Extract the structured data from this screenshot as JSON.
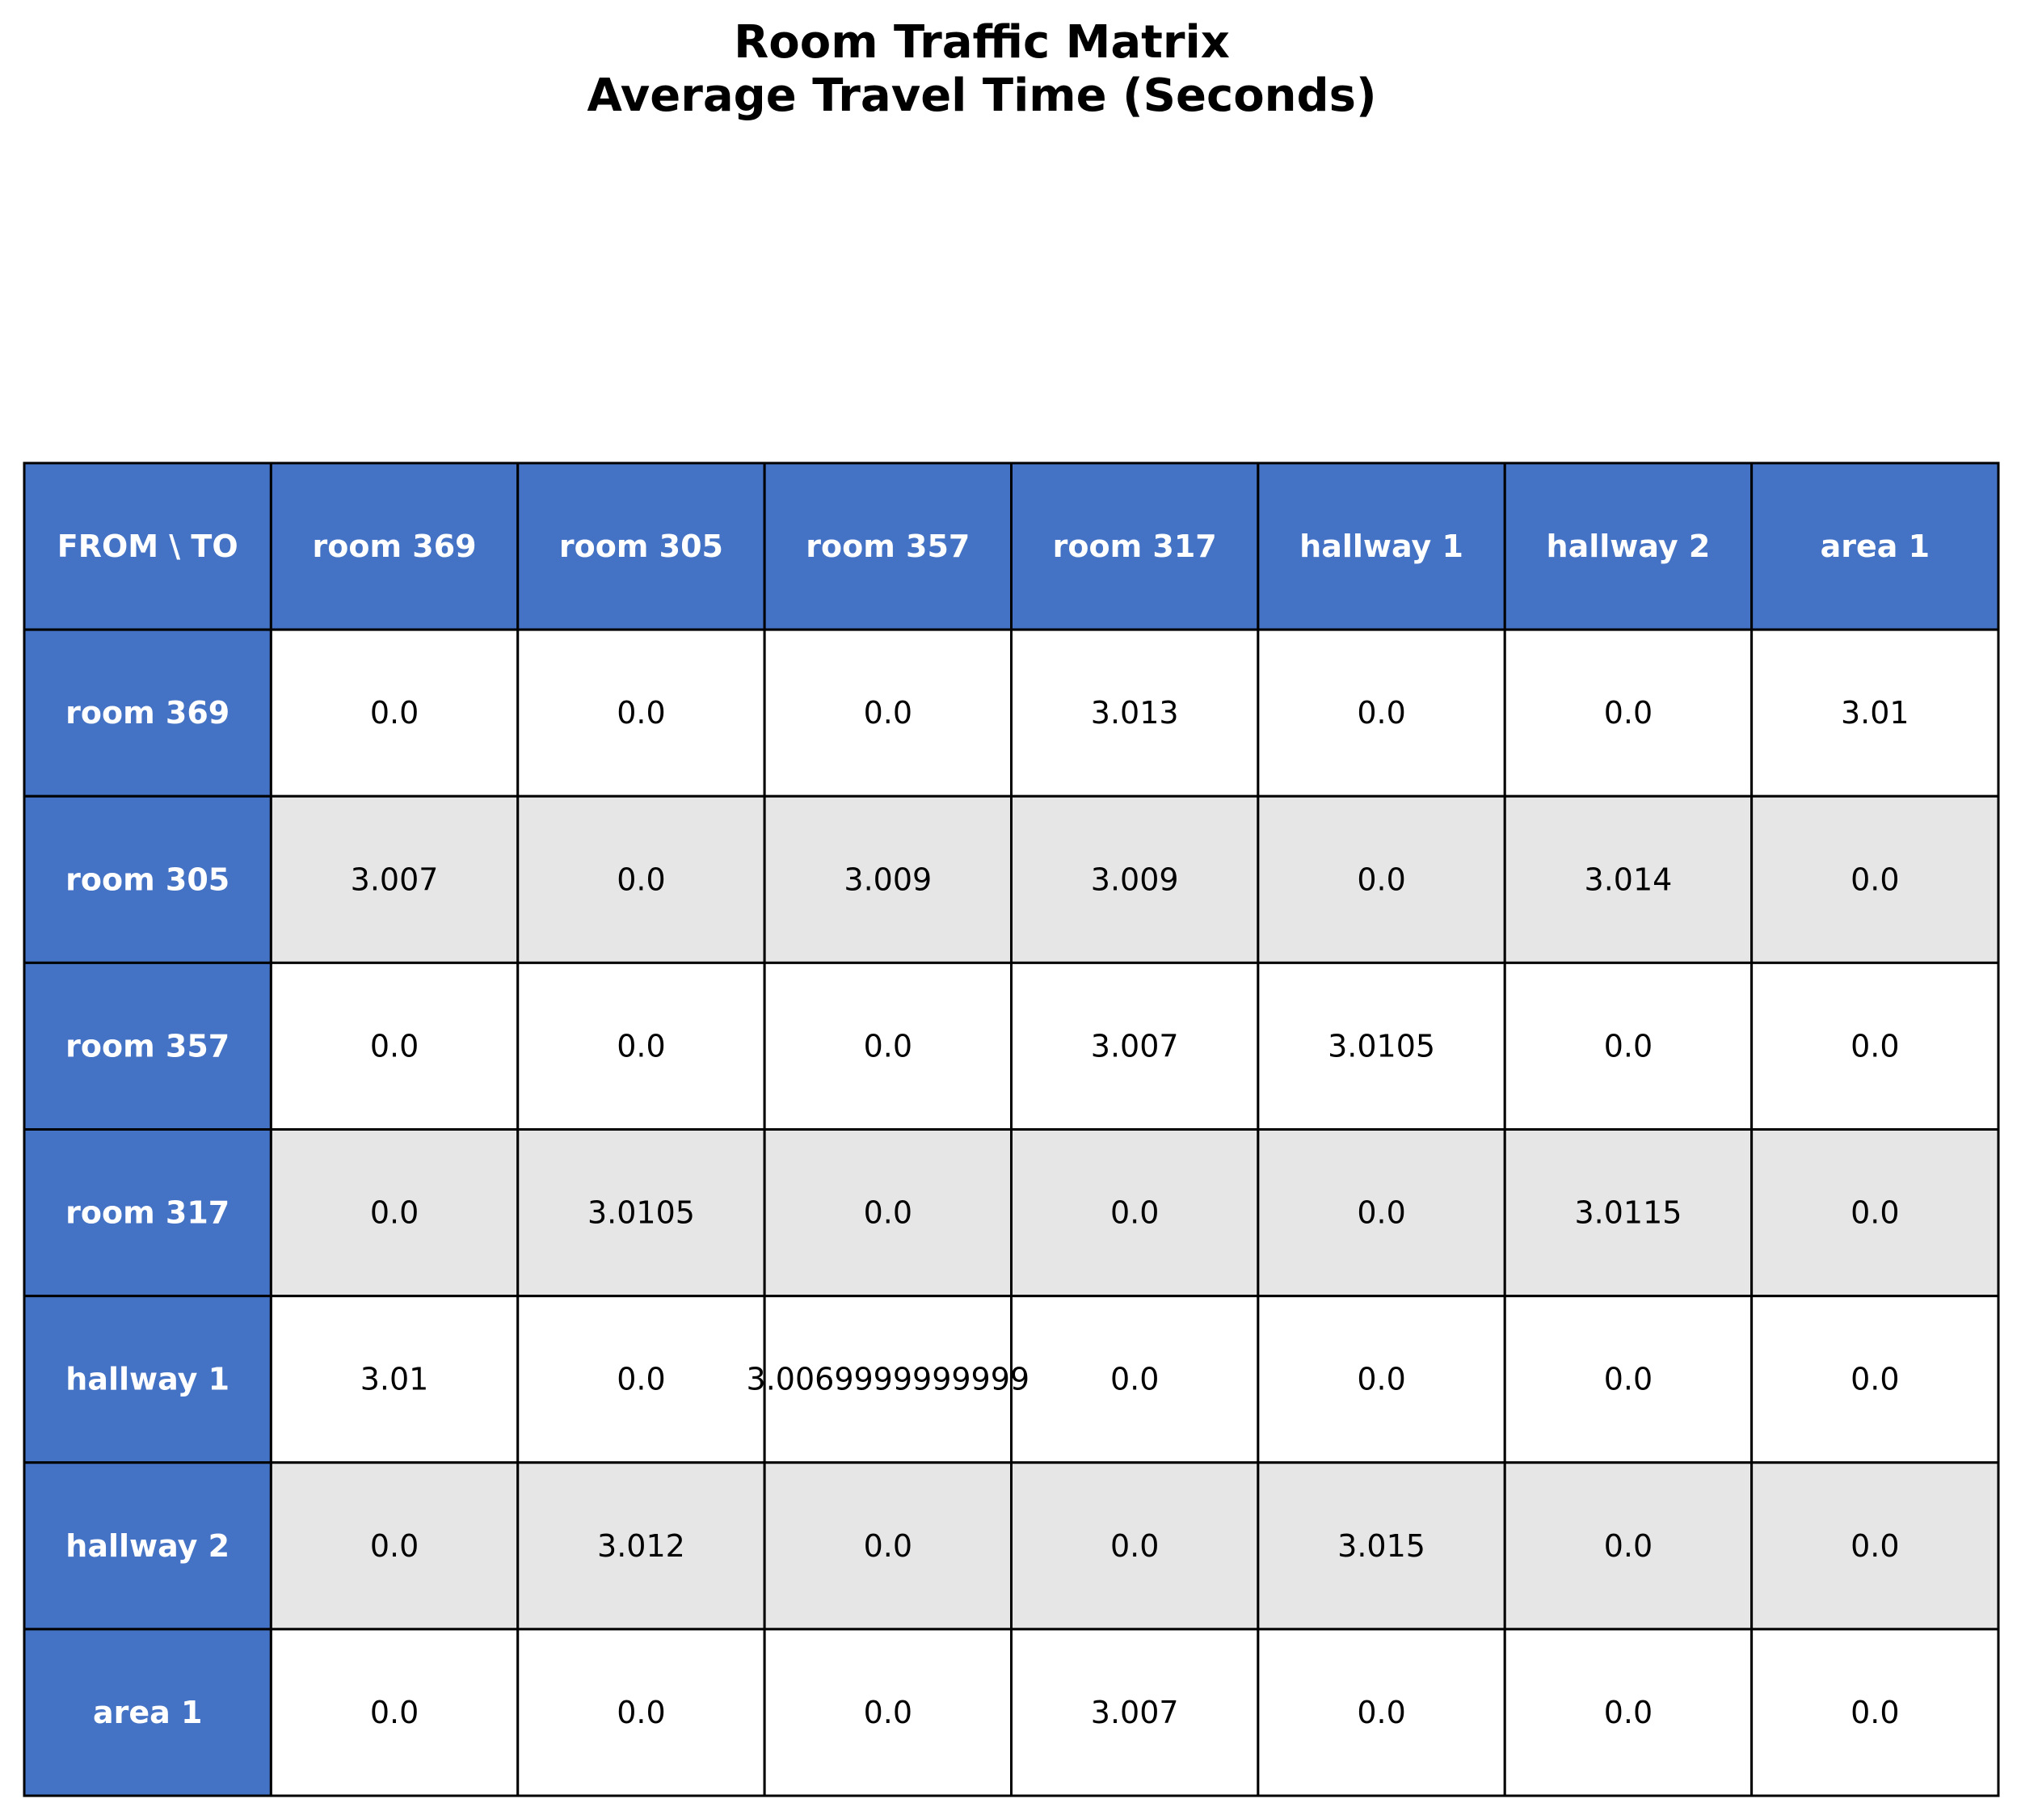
{
  "chart_data": {
    "type": "table",
    "title_lines": [
      "Room Traffic Matrix",
      "Average Travel Time (Seconds)"
    ],
    "corner_label": "FROM \\ TO",
    "columns": [
      "room 369",
      "room 305",
      "room 357",
      "room 317",
      "hallway 1",
      "hallway 2",
      "area 1"
    ],
    "rows": [
      {
        "label": "room 369",
        "values": [
          "0.0",
          "0.0",
          "0.0",
          "3.013",
          "0.0",
          "0.0",
          "3.01"
        ]
      },
      {
        "label": "room 305",
        "values": [
          "3.007",
          "0.0",
          "3.009",
          "3.009",
          "0.0",
          "3.014",
          "0.0"
        ]
      },
      {
        "label": "room 357",
        "values": [
          "0.0",
          "0.0",
          "0.0",
          "3.007",
          "3.0105",
          "0.0",
          "0.0"
        ]
      },
      {
        "label": "room 317",
        "values": [
          "0.0",
          "3.0105",
          "0.0",
          "0.0",
          "0.0",
          "3.0115",
          "0.0"
        ]
      },
      {
        "label": "hallway 1",
        "values": [
          "3.01",
          "0.0",
          "3.0069999999999",
          "0.0",
          "0.0",
          "0.0",
          "0.0"
        ]
      },
      {
        "label": "hallway 2",
        "values": [
          "0.0",
          "3.012",
          "0.0",
          "0.0",
          "3.015",
          "0.0",
          "0.0"
        ]
      },
      {
        "label": "area 1",
        "values": [
          "0.0",
          "0.0",
          "0.0",
          "3.007",
          "0.0",
          "0.0",
          "0.0"
        ]
      }
    ]
  },
  "colors": {
    "header_fill": "#4472C4",
    "header_text": "#ffffff",
    "cell_fill_even": "#ffffff",
    "cell_fill_odd": "#E6E6E6",
    "grid_line": "#000000"
  }
}
